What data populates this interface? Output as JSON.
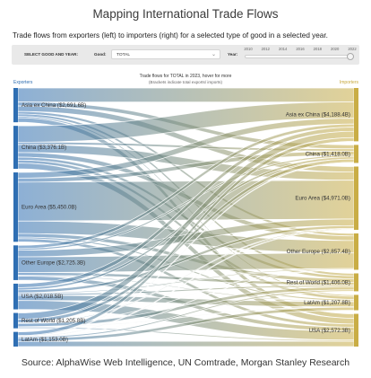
{
  "title": "Mapping International Trade Flows",
  "subtitle": "Trade flows from exporters (left) to importers (right) for a selected type of good in a selected year.",
  "controls": {
    "select_label": "SELECT GOOD AND YEAR:",
    "good_label": "Good:",
    "good_value": "TOTAL",
    "year_label": "Year:",
    "years": [
      "2010",
      "2012",
      "2014",
      "2016",
      "2018",
      "2020",
      "2022"
    ],
    "selected_year": 2023
  },
  "chart_data": {
    "type": "sankey",
    "title": "Trade flows for TOTAL in 2023, hover for more",
    "note": "(Brackets indicate total exports/ imports)",
    "left_header": "Exporters",
    "right_header": "Importers",
    "exporters": [
      {
        "label": "Asia ex China ($2,691.6B)",
        "value": 2691.6
      },
      {
        "label": "China ($3,376.1B)",
        "value": 3376.1
      },
      {
        "label": "Euro Area ($5,450.0B)",
        "value": 5450.0
      },
      {
        "label": "Other Europe ($2,725.3B)",
        "value": 2725.3
      },
      {
        "label": "USA ($2,018.5B)",
        "value": 2018.5
      },
      {
        "label": "Rest of World ($1,205.8B)",
        "value": 1205.8
      },
      {
        "label": "LatAm ($1,153.0B)",
        "value": 1153.0
      }
    ],
    "importers": [
      {
        "label": "Asia ex China ($4,188.4B)",
        "value": 4188.4
      },
      {
        "label": "China ($1,418.0B)",
        "value": 1418.0
      },
      {
        "label": "Euro Area ($4,971.0B)",
        "value": 4971.0
      },
      {
        "label": "Other Europe ($2,857.4B)",
        "value": 2857.4
      },
      {
        "label": "Rest of World ($1,406.0B)",
        "value": 1406.0
      },
      {
        "label": "LatAm ($1,207.8B)",
        "value": 1207.8
      },
      {
        "label": "USA ($2,572.3B)",
        "value": 2572.3
      }
    ],
    "flows": [
      [
        1100,
        310,
        430,
        200,
        190,
        110,
        350
      ],
      [
        1280,
        180,
        640,
        360,
        230,
        240,
        450
      ],
      [
        450,
        320,
        3050,
        980,
        280,
        120,
        250
      ],
      [
        250,
        130,
        520,
        1220,
        220,
        70,
        310
      ],
      [
        320,
        170,
        220,
        80,
        120,
        400,
        700
      ],
      [
        500,
        260,
        60,
        10,
        250,
        30,
        100
      ],
      [
        290,
        50,
        50,
        10,
        110,
        240,
        410
      ]
    ],
    "colors": {
      "left": "#2f6fb3",
      "right": "#c9ad45"
    }
  },
  "source": "Source: AlphaWise Web Intelligence, UN Comtrade, Morgan Stanley Research"
}
